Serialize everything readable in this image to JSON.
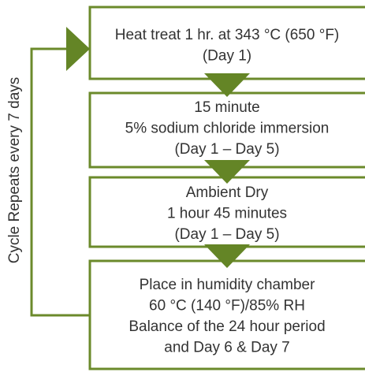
{
  "side_label": "Cycle Repeats every 7 days",
  "nodes": [
    {
      "lines": [
        "Heat treat 1 hr. at 343 °C (650 °F)",
        "(Day 1)"
      ]
    },
    {
      "lines": [
        "15 minute",
        "5% sodium chloride immersion",
        "(Day 1 – Day 5)"
      ]
    },
    {
      "lines": [
        "Ambient Dry",
        "1 hour 45 minutes",
        "(Day 1 – Day 5)"
      ]
    },
    {
      "lines": [
        "Place in humidity chamber",
        "60 °C (140 °F)/85% RH",
        "Balance of the 24 hour period",
        "and Day 6 & Day 7"
      ]
    }
  ]
}
